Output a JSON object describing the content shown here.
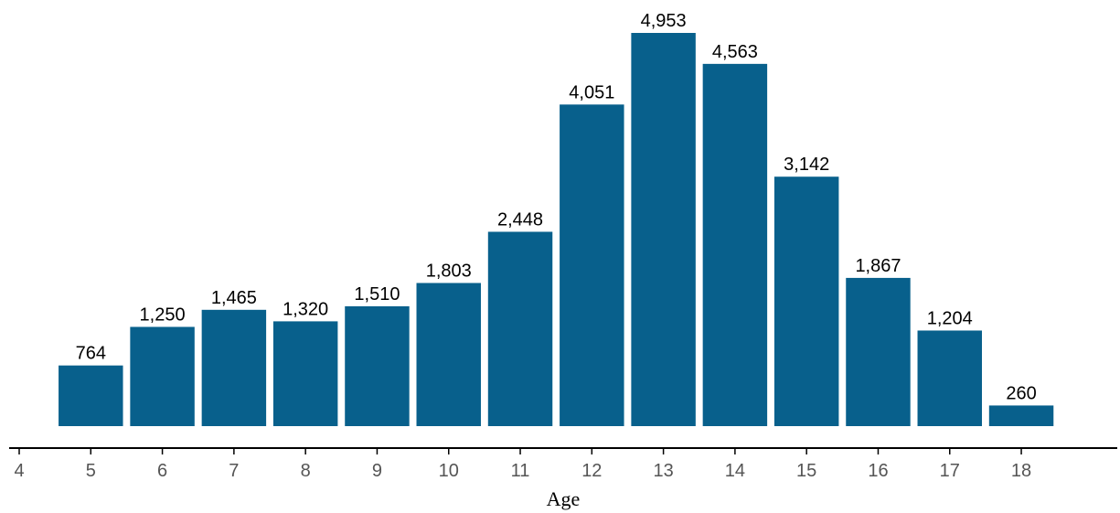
{
  "chart_data": {
    "type": "bar",
    "xlabel": "Age",
    "ylabel": "",
    "title": "",
    "categories": [
      5,
      6,
      7,
      8,
      9,
      10,
      11,
      12,
      13,
      14,
      15,
      16,
      17,
      18
    ],
    "values": [
      764,
      1250,
      1465,
      1320,
      1510,
      1803,
      2448,
      4051,
      4953,
      4563,
      3142,
      1867,
      1204,
      260
    ],
    "data_labels": [
      "764",
      "1,250",
      "1,465",
      "1,320",
      "1,510",
      "1,803",
      "2,448",
      "4,051",
      "4,953",
      "4,563",
      "3,142",
      "1,867",
      "1,204",
      "260"
    ],
    "x_ticks": [
      "4",
      "5",
      "6",
      "7",
      "8",
      "9",
      "10",
      "11",
      "12",
      "13",
      "14",
      "15",
      "16",
      "17",
      "18"
    ],
    "xlim": [
      4,
      19.2
    ],
    "ylim": [
      0,
      4953
    ],
    "grid": false,
    "legend": "none",
    "bar_color": "#08608C"
  }
}
